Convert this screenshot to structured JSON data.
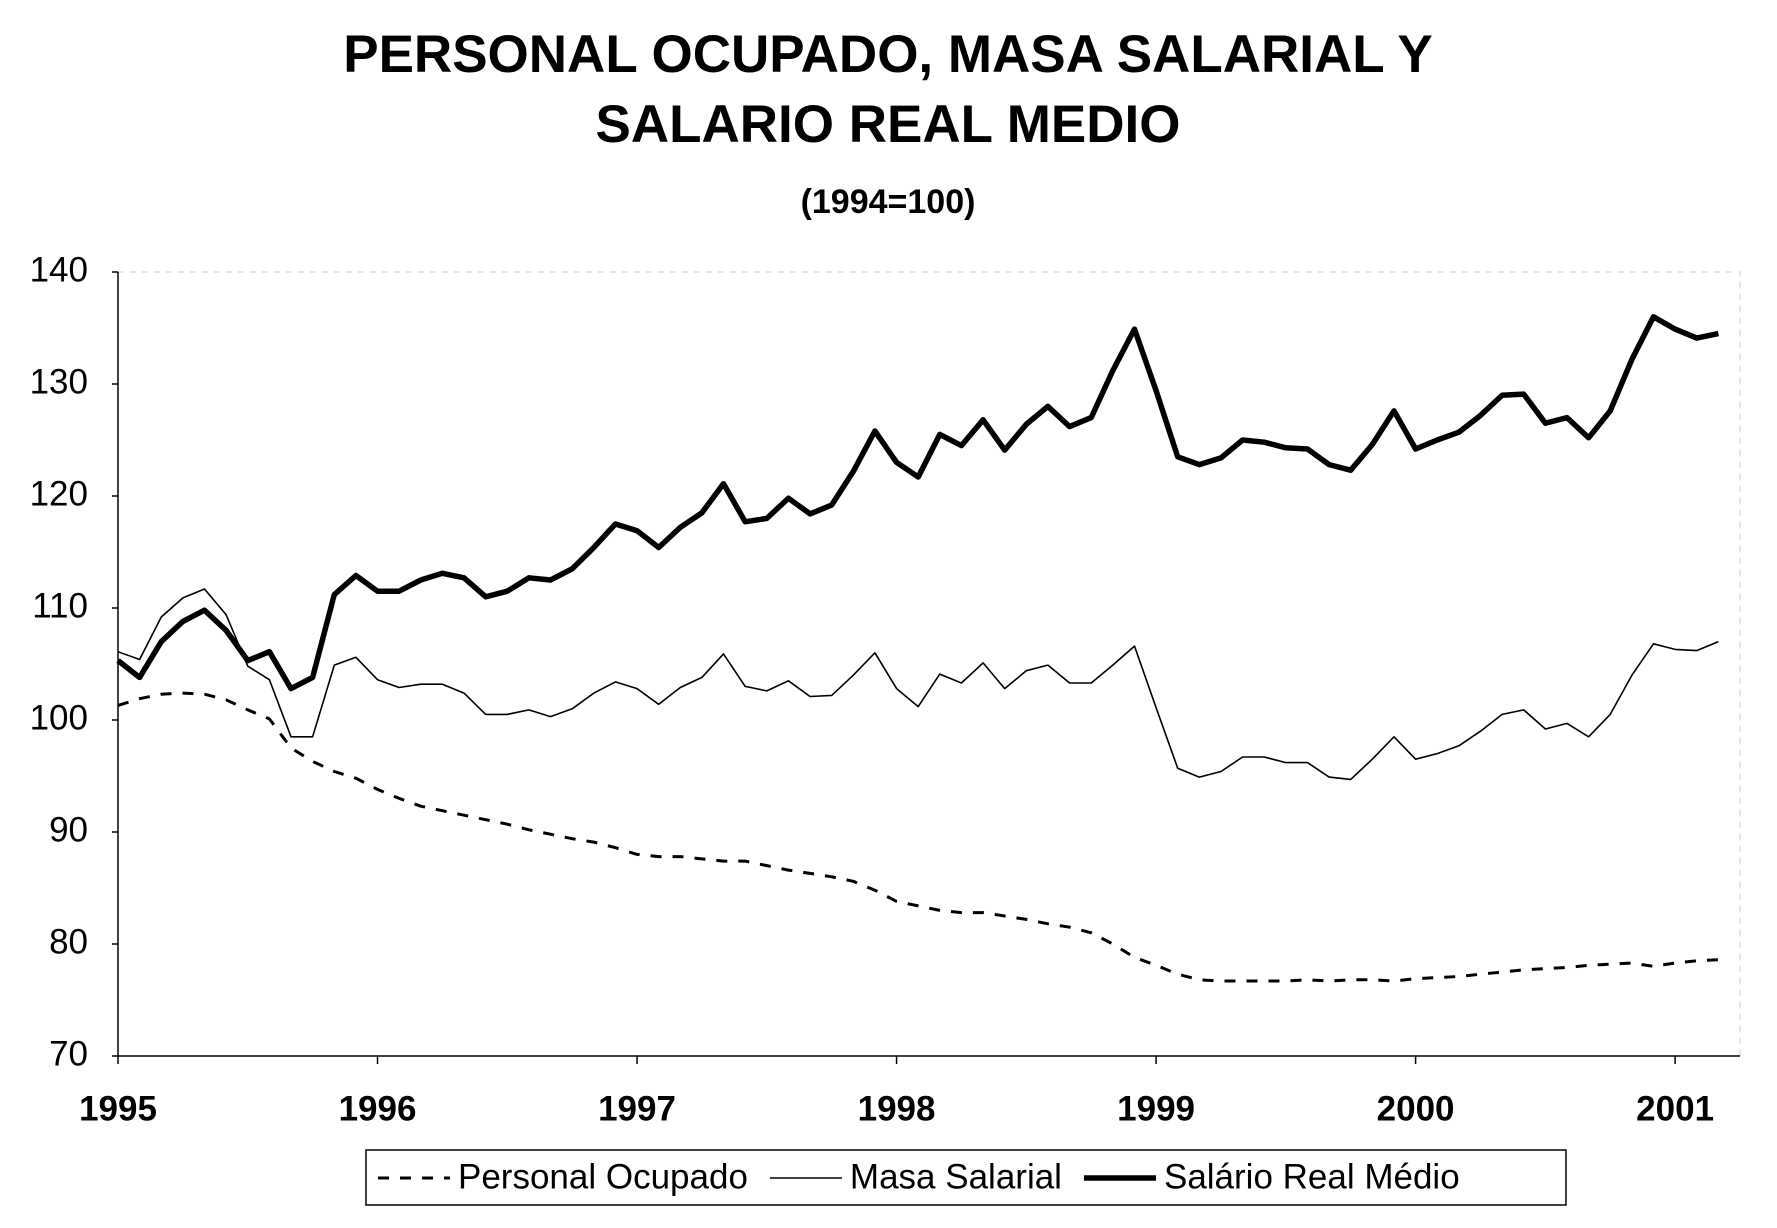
{
  "chart_data": {
    "type": "line",
    "title": [
      "PERSONAL OCUPADO, MASA SALARIAL Y",
      "SALARIO REAL MEDIO"
    ],
    "subtitle": "(1994=100)",
    "categories": [
      "1995",
      null,
      null,
      null,
      null,
      null,
      null,
      null,
      null,
      null,
      null,
      null,
      "1996",
      null,
      null,
      null,
      null,
      null,
      null,
      null,
      null,
      null,
      null,
      null,
      "1997",
      null,
      null,
      null,
      null,
      null,
      null,
      null,
      null,
      null,
      null,
      null,
      "1998",
      null,
      null,
      null,
      null,
      null,
      null,
      null,
      null,
      null,
      null,
      null,
      "1999",
      null,
      null,
      null,
      null,
      null,
      null,
      null,
      null,
      null,
      null,
      null,
      "2000",
      null,
      null,
      null,
      null,
      null,
      null,
      null,
      null,
      null,
      null,
      null,
      "2001",
      null,
      null
    ],
    "ylim": [
      70,
      140
    ],
    "yticks": [
      70,
      80,
      90,
      100,
      110,
      120,
      130,
      140
    ],
    "grid": false,
    "legend": "bottom",
    "series": [
      {
        "name": "Personal Ocupado",
        "color": "#000000",
        "style": "dashed",
        "values": [
          101.3,
          101.9,
          102.3,
          102.4,
          102.3,
          101.8,
          100.9,
          100.1,
          97.5,
          96.3,
          95.4,
          94.8,
          93.8,
          93.0,
          92.3,
          91.9,
          91.5,
          91.1,
          90.7,
          90.2,
          89.8,
          89.4,
          89.1,
          88.6,
          88.0,
          87.8,
          87.8,
          87.6,
          87.4,
          87.4,
          87.0,
          86.6,
          86.3,
          86.0,
          85.6,
          84.8,
          83.8,
          83.4,
          83.0,
          82.8,
          82.8,
          82.5,
          82.2,
          81.8,
          81.5,
          81.0,
          80.0,
          78.8,
          78.1,
          77.3,
          76.8,
          76.7,
          76.7,
          76.7,
          76.7,
          76.8,
          76.7,
          76.8,
          76.8,
          76.7,
          76.9,
          77.0,
          77.1,
          77.3,
          77.5,
          77.7,
          77.8,
          77.9,
          78.1,
          78.2,
          78.3,
          78.0,
          78.3,
          78.5,
          78.6
        ]
      },
      {
        "name": "Masa Salarial",
        "color": "#000000",
        "style": "thin",
        "values": [
          106.1,
          105.4,
          109.2,
          110.9,
          111.7,
          109.4,
          104.8,
          103.6,
          98.5,
          98.5,
          104.9,
          105.6,
          103.6,
          102.9,
          103.2,
          103.2,
          102.4,
          100.5,
          100.5,
          100.9,
          100.3,
          101.0,
          102.4,
          103.4,
          102.8,
          101.4,
          102.9,
          103.8,
          105.9,
          103.0,
          102.6,
          103.5,
          102.1,
          102.2,
          104.0,
          106.0,
          102.8,
          101.2,
          104.1,
          103.3,
          105.1,
          102.8,
          104.4,
          104.9,
          103.3,
          103.3,
          104.9,
          106.6,
          101.1,
          95.7,
          94.9,
          95.4,
          96.7,
          96.7,
          96.2,
          96.2,
          94.9,
          94.7,
          96.5,
          98.5,
          96.5,
          97.0,
          97.7,
          99.0,
          100.5,
          100.9,
          99.2,
          99.7,
          98.5,
          100.5,
          104.0,
          106.8,
          106.3,
          106.2,
          107.0
        ]
      },
      {
        "name": "Salário Real Médio",
        "color": "#000000",
        "style": "thick",
        "values": [
          105.3,
          103.8,
          107.0,
          108.8,
          109.8,
          108.0,
          105.3,
          106.1,
          102.8,
          103.8,
          111.2,
          112.9,
          111.5,
          111.5,
          112.5,
          113.1,
          112.7,
          111.0,
          111.5,
          112.7,
          112.5,
          113.5,
          115.4,
          117.5,
          116.9,
          115.4,
          117.2,
          118.5,
          121.1,
          117.7,
          118.0,
          119.8,
          118.4,
          119.2,
          122.2,
          125.8,
          123.0,
          121.7,
          125.5,
          124.5,
          126.8,
          124.1,
          126.4,
          128.0,
          126.2,
          127.0,
          131.2,
          134.9,
          129.4,
          123.5,
          122.8,
          123.4,
          125.0,
          124.8,
          124.3,
          124.2,
          122.8,
          122.3,
          124.6,
          127.6,
          124.2,
          125.0,
          125.7,
          127.2,
          129.0,
          129.1,
          126.5,
          127.0,
          125.2,
          127.6,
          132.2,
          136.0,
          134.9,
          134.1,
          134.5
        ]
      }
    ]
  }
}
